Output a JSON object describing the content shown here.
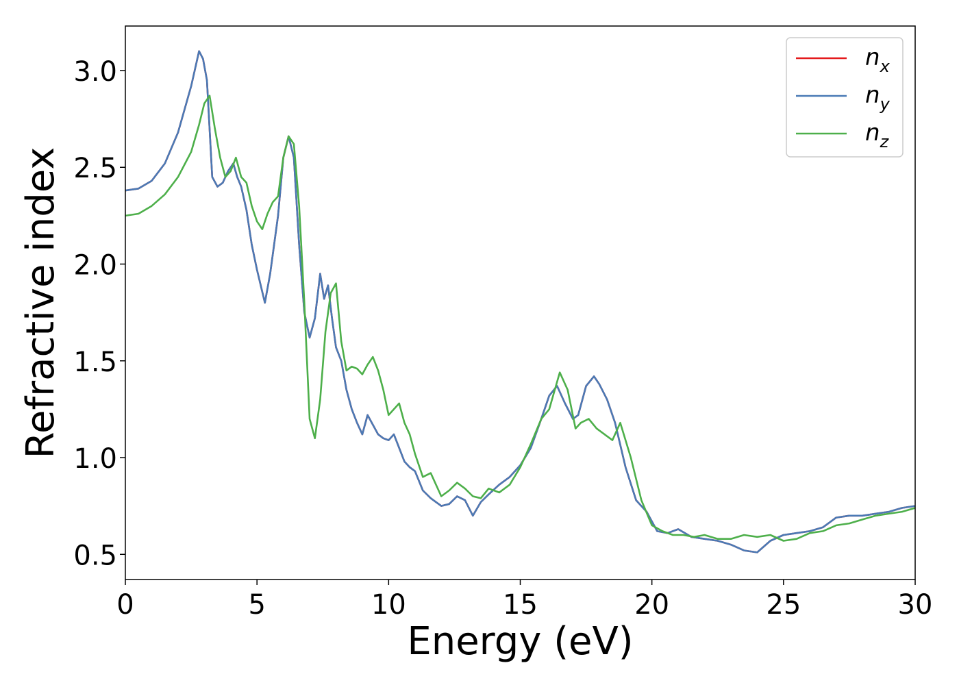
{
  "chart_data": {
    "type": "line",
    "title": "",
    "xlabel": "Energy (eV)",
    "ylabel": "Refractive index",
    "xlim": [
      0,
      30
    ],
    "ylim": [
      0.37,
      3.23
    ],
    "xticks": [
      0,
      5,
      10,
      15,
      20,
      25,
      30
    ],
    "xtick_labels": [
      "0",
      "5",
      "10",
      "15",
      "20",
      "25",
      "30"
    ],
    "yticks": [
      0.5,
      1.0,
      1.5,
      2.0,
      2.5,
      3.0
    ],
    "ytick_labels": [
      "0.5",
      "1.0",
      "1.5",
      "2.0",
      "2.5",
      "3.0"
    ],
    "grid": false,
    "legend_position": "top-right",
    "series": [
      {
        "name": "n_x",
        "label_base": "n",
        "label_sub": "x",
        "color": "#e41a1c",
        "x": [
          0,
          0.5,
          1,
          1.5,
          2,
          2.5,
          2.8,
          2.95,
          3.1,
          3.3,
          3.5,
          3.7,
          3.9,
          4.1,
          4.25,
          4.4,
          4.6,
          4.8,
          5.0,
          5.3,
          5.5,
          5.8,
          6.0,
          6.2,
          6.4,
          6.6,
          6.8,
          7.0,
          7.2,
          7.4,
          7.55,
          7.7,
          7.85,
          8.0,
          8.2,
          8.4,
          8.6,
          8.8,
          9.0,
          9.2,
          9.4,
          9.6,
          9.8,
          10.0,
          10.2,
          10.4,
          10.6,
          10.8,
          11.0,
          11.3,
          11.6,
          12.0,
          12.3,
          12.6,
          12.9,
          13.2,
          13.5,
          13.8,
          14.2,
          14.6,
          15.0,
          15.4,
          15.8,
          16.1,
          16.4,
          16.7,
          17.0,
          17.2,
          17.5,
          17.8,
          18.0,
          18.3,
          18.6,
          19.0,
          19.4,
          19.8,
          20.2,
          20.6,
          21.0,
          21.5,
          22.0,
          22.5,
          23.0,
          23.5,
          24.0,
          24.5,
          25.0,
          25.5,
          26.0,
          26.5,
          27.0,
          27.5,
          28.0,
          28.5,
          29.0,
          29.5,
          30.0
        ],
        "values": [
          2.38,
          2.39,
          2.43,
          2.52,
          2.68,
          2.92,
          3.1,
          3.06,
          2.95,
          2.45,
          2.4,
          2.42,
          2.48,
          2.52,
          2.45,
          2.4,
          2.28,
          2.1,
          1.97,
          1.8,
          1.95,
          2.25,
          2.55,
          2.66,
          2.55,
          2.1,
          1.75,
          1.62,
          1.72,
          1.95,
          1.82,
          1.89,
          1.72,
          1.57,
          1.5,
          1.35,
          1.25,
          1.18,
          1.12,
          1.22,
          1.17,
          1.12,
          1.1,
          1.09,
          1.12,
          1.05,
          0.98,
          0.95,
          0.93,
          0.83,
          0.79,
          0.75,
          0.76,
          0.8,
          0.78,
          0.7,
          0.77,
          0.81,
          0.86,
          0.9,
          0.96,
          1.05,
          1.2,
          1.32,
          1.37,
          1.28,
          1.2,
          1.22,
          1.37,
          1.42,
          1.38,
          1.3,
          1.18,
          0.95,
          0.78,
          0.72,
          0.62,
          0.61,
          0.63,
          0.59,
          0.58,
          0.57,
          0.55,
          0.52,
          0.51,
          0.57,
          0.6,
          0.61,
          0.62,
          0.64,
          0.69,
          0.7,
          0.7,
          0.71,
          0.72,
          0.74,
          0.75
        ]
      },
      {
        "name": "n_y",
        "label_base": "n",
        "label_sub": "y",
        "color": "#4a7ab5",
        "x": [
          0,
          0.5,
          1,
          1.5,
          2,
          2.5,
          2.8,
          2.95,
          3.1,
          3.3,
          3.5,
          3.7,
          3.9,
          4.1,
          4.25,
          4.4,
          4.6,
          4.8,
          5.0,
          5.3,
          5.5,
          5.8,
          6.0,
          6.2,
          6.4,
          6.6,
          6.8,
          7.0,
          7.2,
          7.4,
          7.55,
          7.7,
          7.85,
          8.0,
          8.2,
          8.4,
          8.6,
          8.8,
          9.0,
          9.2,
          9.4,
          9.6,
          9.8,
          10.0,
          10.2,
          10.4,
          10.6,
          10.8,
          11.0,
          11.3,
          11.6,
          12.0,
          12.3,
          12.6,
          12.9,
          13.2,
          13.5,
          13.8,
          14.2,
          14.6,
          15.0,
          15.4,
          15.8,
          16.1,
          16.4,
          16.7,
          17.0,
          17.2,
          17.5,
          17.8,
          18.0,
          18.3,
          18.6,
          19.0,
          19.4,
          19.8,
          20.2,
          20.6,
          21.0,
          21.5,
          22.0,
          22.5,
          23.0,
          23.5,
          24.0,
          24.5,
          25.0,
          25.5,
          26.0,
          26.5,
          27.0,
          27.5,
          28.0,
          28.5,
          29.0,
          29.5,
          30.0
        ],
        "values": [
          2.38,
          2.39,
          2.43,
          2.52,
          2.68,
          2.92,
          3.1,
          3.06,
          2.95,
          2.45,
          2.4,
          2.42,
          2.48,
          2.52,
          2.45,
          2.4,
          2.28,
          2.1,
          1.97,
          1.8,
          1.95,
          2.25,
          2.55,
          2.66,
          2.55,
          2.1,
          1.75,
          1.62,
          1.72,
          1.95,
          1.82,
          1.89,
          1.72,
          1.57,
          1.5,
          1.35,
          1.25,
          1.18,
          1.12,
          1.22,
          1.17,
          1.12,
          1.1,
          1.09,
          1.12,
          1.05,
          0.98,
          0.95,
          0.93,
          0.83,
          0.79,
          0.75,
          0.76,
          0.8,
          0.78,
          0.7,
          0.77,
          0.81,
          0.86,
          0.9,
          0.96,
          1.05,
          1.2,
          1.32,
          1.37,
          1.28,
          1.2,
          1.22,
          1.37,
          1.42,
          1.38,
          1.3,
          1.18,
          0.95,
          0.78,
          0.72,
          0.62,
          0.61,
          0.63,
          0.59,
          0.58,
          0.57,
          0.55,
          0.52,
          0.51,
          0.57,
          0.6,
          0.61,
          0.62,
          0.64,
          0.69,
          0.7,
          0.7,
          0.71,
          0.72,
          0.74,
          0.75
        ]
      },
      {
        "name": "n_z",
        "label_base": "n",
        "label_sub": "z",
        "color": "#4daf4a",
        "x": [
          0,
          0.5,
          1,
          1.5,
          2,
          2.5,
          2.8,
          3.0,
          3.2,
          3.4,
          3.6,
          3.8,
          4.0,
          4.2,
          4.4,
          4.6,
          4.8,
          5.0,
          5.2,
          5.4,
          5.6,
          5.8,
          6.0,
          6.2,
          6.4,
          6.6,
          6.8,
          7.0,
          7.2,
          7.4,
          7.6,
          7.8,
          8.0,
          8.2,
          8.4,
          8.6,
          8.8,
          9.0,
          9.2,
          9.4,
          9.6,
          9.8,
          10.0,
          10.2,
          10.4,
          10.6,
          10.8,
          11.0,
          11.3,
          11.6,
          12.0,
          12.3,
          12.6,
          12.9,
          13.2,
          13.5,
          13.8,
          14.2,
          14.6,
          15.0,
          15.4,
          15.8,
          16.1,
          16.5,
          16.8,
          17.1,
          17.3,
          17.6,
          17.9,
          18.2,
          18.5,
          18.8,
          19.2,
          19.6,
          20.0,
          20.4,
          20.8,
          21.2,
          21.6,
          22.0,
          22.5,
          23.0,
          23.5,
          24.0,
          24.5,
          25.0,
          25.5,
          26.0,
          26.5,
          27.0,
          27.5,
          28.0,
          28.5,
          29.0,
          29.5,
          30.0
        ],
        "values": [
          2.25,
          2.26,
          2.3,
          2.36,
          2.45,
          2.58,
          2.72,
          2.83,
          2.87,
          2.7,
          2.55,
          2.45,
          2.48,
          2.55,
          2.45,
          2.42,
          2.3,
          2.22,
          2.18,
          2.26,
          2.32,
          2.35,
          2.55,
          2.66,
          2.62,
          2.3,
          1.8,
          1.2,
          1.1,
          1.3,
          1.65,
          1.85,
          1.9,
          1.6,
          1.45,
          1.47,
          1.46,
          1.43,
          1.48,
          1.52,
          1.45,
          1.35,
          1.22,
          1.25,
          1.28,
          1.18,
          1.12,
          1.02,
          0.9,
          0.92,
          0.8,
          0.83,
          0.87,
          0.84,
          0.8,
          0.79,
          0.84,
          0.82,
          0.86,
          0.95,
          1.07,
          1.2,
          1.25,
          1.44,
          1.35,
          1.15,
          1.18,
          1.2,
          1.15,
          1.12,
          1.09,
          1.18,
          1.0,
          0.78,
          0.65,
          0.62,
          0.6,
          0.6,
          0.59,
          0.6,
          0.58,
          0.58,
          0.6,
          0.59,
          0.6,
          0.57,
          0.58,
          0.61,
          0.62,
          0.65,
          0.66,
          0.68,
          0.7,
          0.71,
          0.72,
          0.74
        ]
      }
    ]
  }
}
